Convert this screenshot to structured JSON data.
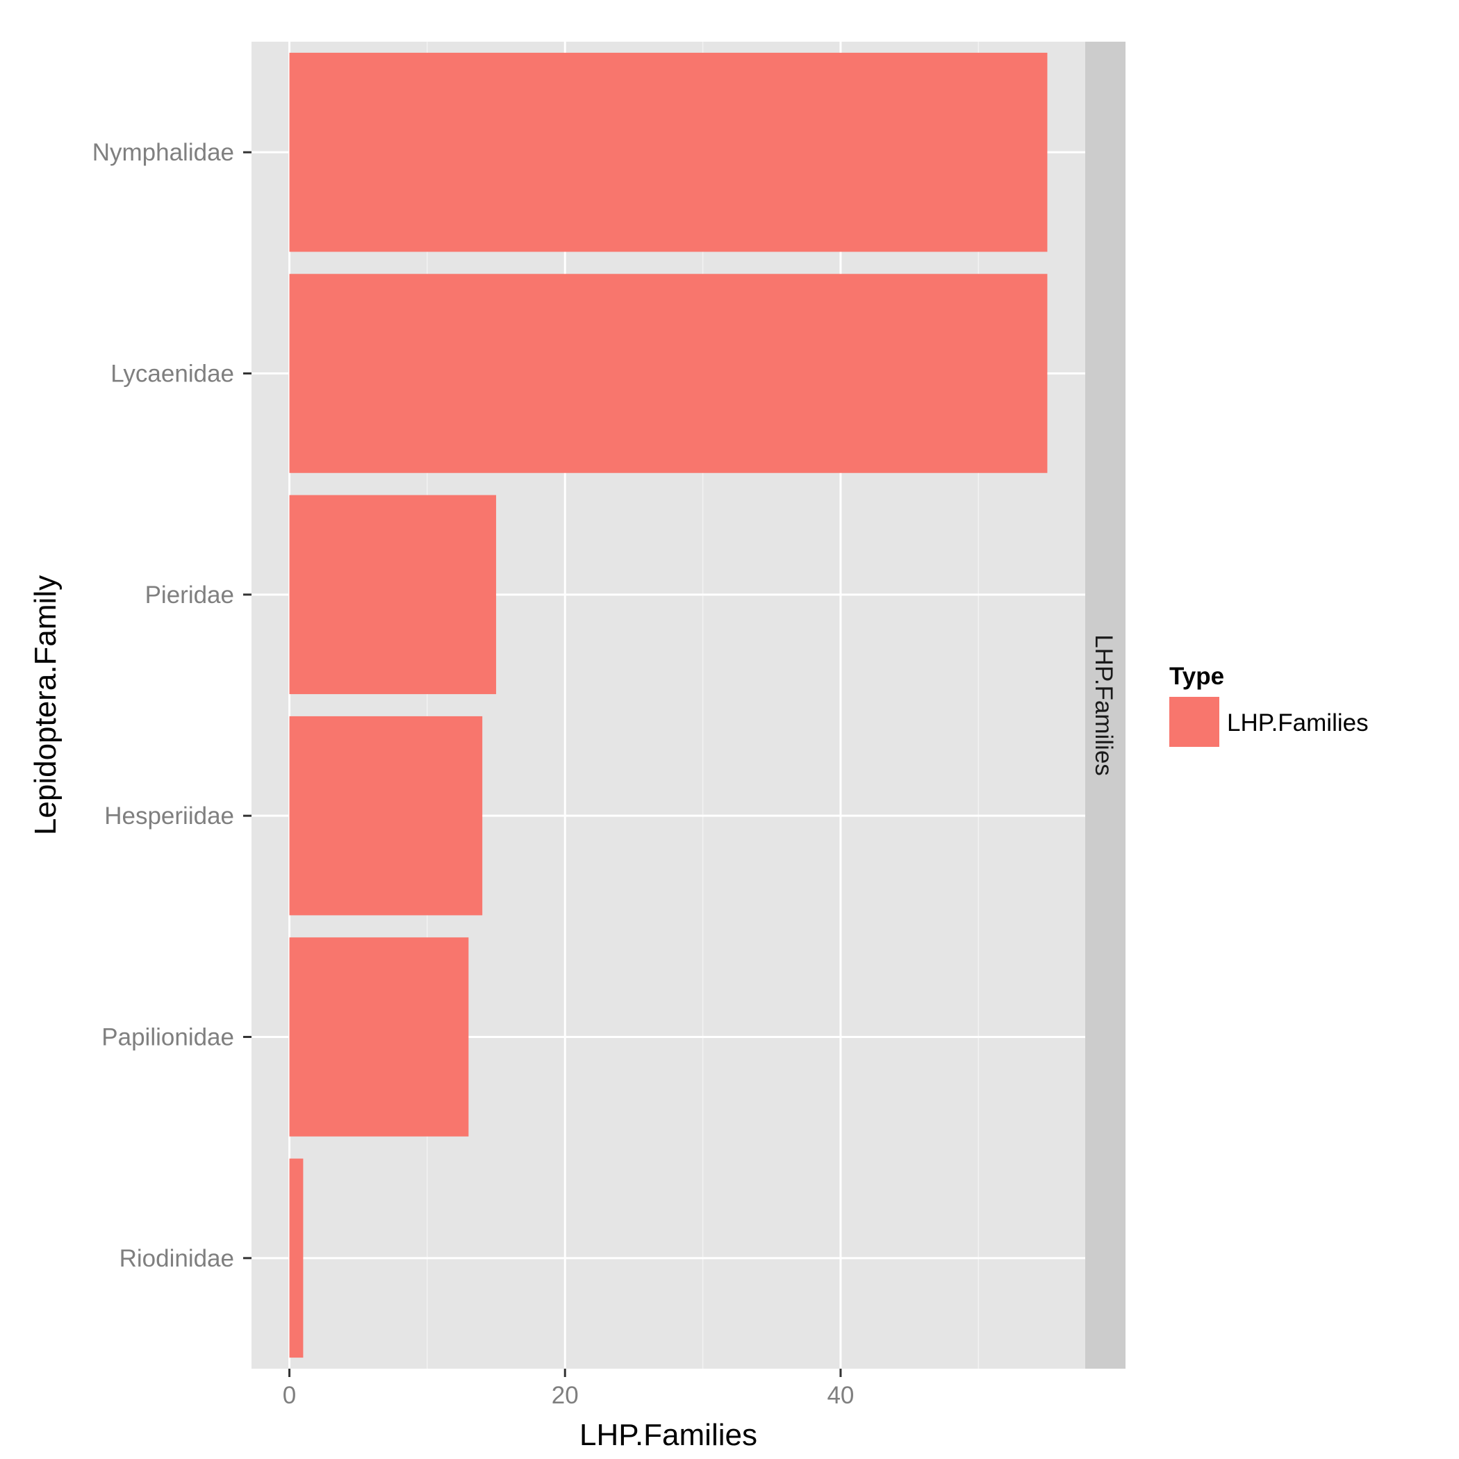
{
  "chart_data": {
    "type": "bar",
    "orientation": "horizontal",
    "categories": [
      "Riodinidae",
      "Papilionidae",
      "Hesperiidae",
      "Pieridae",
      "Lycaenidae",
      "Nymphalidae"
    ],
    "series": [
      {
        "name": "LHP.Families",
        "values": [
          1,
          13,
          14,
          15,
          55,
          55
        ]
      }
    ],
    "xlabel": "LHP.Families",
    "ylabel": "Lepidoptera.Family",
    "xlim": [
      -2.75,
      57.75
    ],
    "xticks": [
      0,
      20,
      40
    ],
    "x_minor_ticks": [
      10,
      30,
      50
    ],
    "facet_strip": "LHP.Families",
    "legend": {
      "title": "Type",
      "position": "right",
      "entries": [
        "LHP.Families"
      ]
    },
    "colors": {
      "bar": "#F8766D",
      "panel": "#E5E5E5",
      "strip": "#CCCCCC",
      "grid": "#FFFFFF"
    },
    "grid": true
  }
}
